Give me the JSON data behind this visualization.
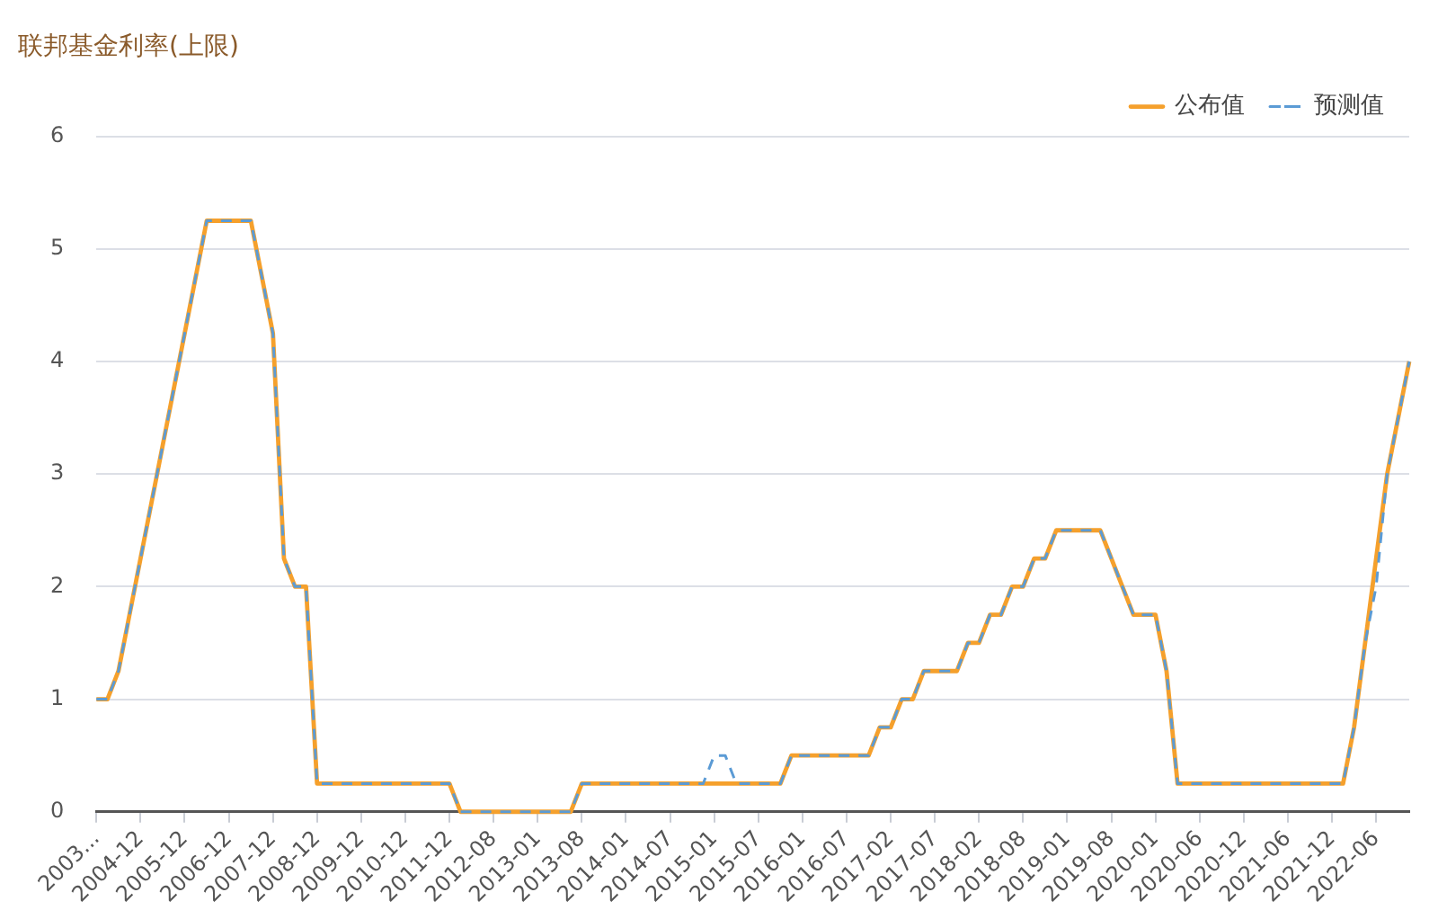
{
  "chart_data": {
    "type": "line",
    "title": "联邦基金利率(上限)",
    "categories": [
      "2003...",
      null,
      null,
      null,
      "2004-12",
      null,
      null,
      null,
      "2005-12",
      null,
      null,
      null,
      "2006-12",
      null,
      null,
      null,
      "2007-12",
      null,
      null,
      null,
      "2008-12",
      null,
      null,
      null,
      "2009-12",
      null,
      null,
      null,
      "2010-12",
      null,
      null,
      null,
      "2011-12",
      null,
      null,
      null,
      "2012-08",
      null,
      null,
      null,
      "2013-01",
      null,
      null,
      null,
      "2013-08",
      null,
      null,
      null,
      "2014-01",
      null,
      null,
      null,
      "2014-07",
      null,
      null,
      null,
      "2015-01",
      null,
      null,
      null,
      "2015-07",
      null,
      null,
      null,
      "2016-01",
      null,
      null,
      null,
      "2016-07",
      null,
      null,
      null,
      "2017-02",
      null,
      null,
      null,
      "2017-07",
      null,
      null,
      null,
      "2018-02",
      null,
      null,
      null,
      "2018-08",
      null,
      null,
      null,
      "2019-01",
      null,
      null,
      null,
      "2019-08",
      null,
      null,
      null,
      "2020-01",
      null,
      null,
      null,
      "2020-06",
      null,
      null,
      null,
      "2020-12",
      null,
      null,
      null,
      "2021-06",
      null,
      null,
      null,
      "2021-12",
      null,
      null,
      null,
      "2022-06",
      null,
      null,
      null
    ],
    "series": [
      {
        "name": "公布值",
        "color": "#f5a02c",
        "line_style": "solid",
        "values": [
          1,
          1,
          1.25,
          1.75,
          2.25,
          2.75,
          3.25,
          3.75,
          4.25,
          4.75,
          5.25,
          5.25,
          5.25,
          5.25,
          5.25,
          4.75,
          4.25,
          2.25,
          2,
          2,
          0.25,
          0.25,
          0.25,
          0.25,
          0.25,
          0.25,
          0.25,
          0.25,
          0.25,
          0.25,
          0.25,
          0.25,
          0.25,
          0,
          0,
          0,
          0,
          0,
          0,
          0,
          0,
          0,
          0,
          0,
          0.25,
          0.25,
          0.25,
          0.25,
          0.25,
          0.25,
          0.25,
          0.25,
          0.25,
          0.25,
          0.25,
          0.25,
          0.25,
          0.25,
          0.25,
          0.25,
          0.25,
          0.25,
          0.25,
          0.5,
          0.5,
          0.5,
          0.5,
          0.5,
          0.5,
          0.5,
          0.5,
          0.75,
          0.75,
          1,
          1,
          1.25,
          1.25,
          1.25,
          1.25,
          1.5,
          1.5,
          1.75,
          1.75,
          2,
          2,
          2.25,
          2.25,
          2.5,
          2.5,
          2.5,
          2.5,
          2.5,
          2.25,
          2,
          1.75,
          1.75,
          1.75,
          1.25,
          0.25,
          0.25,
          0.25,
          0.25,
          0.25,
          0.25,
          0.25,
          0.25,
          0.25,
          0.25,
          0.25,
          0.25,
          0.25,
          0.25,
          0.25,
          0.25,
          0.75,
          1.5,
          2.25,
          3,
          3.5,
          4
        ]
      },
      {
        "name": "预测值",
        "color": "#5b9bd5",
        "line_style": "dashed",
        "values": [
          1,
          1,
          1.25,
          1.75,
          2.25,
          2.75,
          3.25,
          3.75,
          4.25,
          4.75,
          5.25,
          5.25,
          5.25,
          5.25,
          5.25,
          4.75,
          4.25,
          2.25,
          2,
          2,
          0.25,
          0.25,
          0.25,
          0.25,
          0.25,
          0.25,
          0.25,
          0.25,
          0.25,
          0.25,
          0.25,
          0.25,
          0.25,
          0,
          0,
          0,
          0,
          0,
          0,
          0,
          0,
          0,
          0,
          0,
          0.25,
          0.25,
          0.25,
          0.25,
          0.25,
          0.25,
          0.25,
          0.25,
          0.25,
          0.25,
          0.25,
          0.25,
          0.5,
          0.5,
          0.25,
          0.25,
          0.25,
          0.25,
          0.25,
          0.5,
          0.5,
          0.5,
          0.5,
          0.5,
          0.5,
          0.5,
          0.5,
          0.75,
          0.75,
          1,
          1,
          1.25,
          1.25,
          1.25,
          1.25,
          1.5,
          1.5,
          1.75,
          1.75,
          2,
          2,
          2.25,
          2.25,
          2.5,
          2.5,
          2.5,
          2.5,
          2.5,
          2.25,
          2,
          1.75,
          1.75,
          1.75,
          1.25,
          0.25,
          0.25,
          0.25,
          0.25,
          0.25,
          0.25,
          0.25,
          0.25,
          0.25,
          0.25,
          0.25,
          0.25,
          0.25,
          0.25,
          0.25,
          0.25,
          0.75,
          1.5,
          2,
          3,
          3.5,
          4
        ]
      }
    ],
    "ylim": [
      0,
      6
    ],
    "yticks": [
      0,
      1,
      2,
      3,
      4,
      5,
      6
    ],
    "grid": "y",
    "legend": "top right",
    "marker": "none"
  }
}
